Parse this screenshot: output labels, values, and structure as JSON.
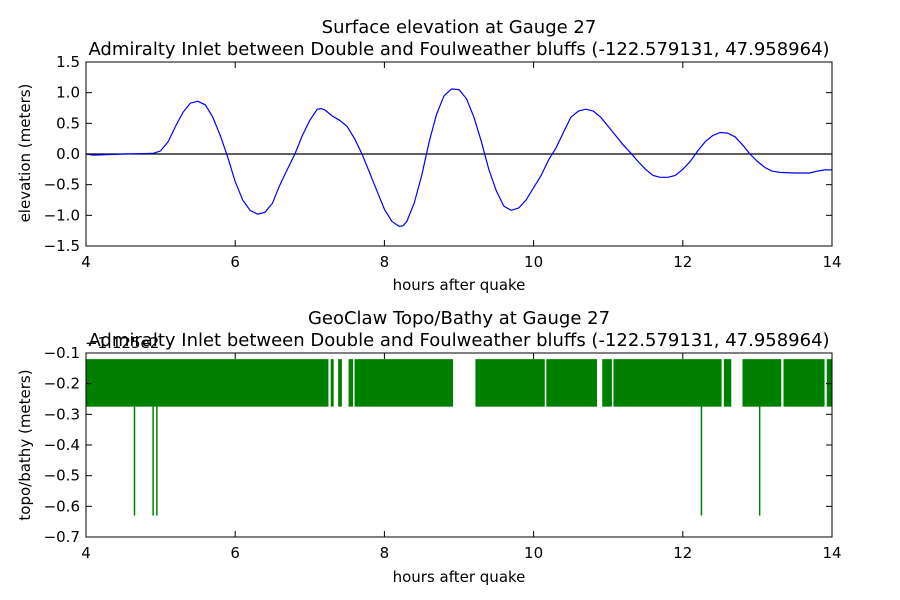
{
  "chart_data": [
    {
      "type": "line",
      "title": "Surface elevation at Gauge 27",
      "subtitle": "Admiralty Inlet between Double and Foulweather bluffs  (-122.579131, 47.958964)",
      "xlabel": "hours after quake",
      "ylabel": "elevation (meters)",
      "xlim": [
        4,
        14
      ],
      "ylim": [
        -1.5,
        1.5
      ],
      "xticks": [
        "4",
        "6",
        "8",
        "10",
        "12",
        "14"
      ],
      "yticks": [
        "1.5",
        "1.0",
        "0.5",
        "0.0",
        "−0.5",
        "−1.0",
        "−1.5"
      ],
      "grid": false,
      "reference_line": {
        "y": 0.0,
        "color": "#000000"
      },
      "series": [
        {
          "color": "#0000ff",
          "x": [
            4.0,
            4.1,
            4.5,
            4.9,
            5.0,
            5.1,
            5.2,
            5.3,
            5.4,
            5.5,
            5.6,
            5.7,
            5.8,
            5.9,
            6.0,
            6.1,
            6.2,
            6.3,
            6.4,
            6.5,
            6.6,
            6.7,
            6.8,
            6.9,
            7.0,
            7.1,
            7.15,
            7.2,
            7.3,
            7.4,
            7.5,
            7.6,
            7.7,
            7.8,
            7.9,
            8.0,
            8.1,
            8.2,
            8.25,
            8.3,
            8.4,
            8.5,
            8.6,
            8.7,
            8.8,
            8.9,
            9.0,
            9.1,
            9.2,
            9.3,
            9.4,
            9.5,
            9.6,
            9.7,
            9.8,
            9.9,
            10.0,
            10.1,
            10.2,
            10.3,
            10.4,
            10.5,
            10.6,
            10.7,
            10.8,
            10.9,
            11.0,
            11.1,
            11.2,
            11.3,
            11.4,
            11.5,
            11.6,
            11.7,
            11.8,
            11.9,
            12.0,
            12.1,
            12.2,
            12.3,
            12.4,
            12.5,
            12.6,
            12.7,
            12.8,
            12.9,
            13.0,
            13.1,
            13.2,
            13.3,
            13.5,
            13.7,
            13.8,
            13.9,
            14.0
          ],
          "y": [
            0.0,
            -0.02,
            0.0,
            0.01,
            0.05,
            0.2,
            0.45,
            0.68,
            0.83,
            0.86,
            0.8,
            0.6,
            0.3,
            -0.05,
            -0.45,
            -0.75,
            -0.92,
            -0.98,
            -0.95,
            -0.8,
            -0.5,
            -0.25,
            0.0,
            0.3,
            0.55,
            0.73,
            0.74,
            0.72,
            0.62,
            0.55,
            0.45,
            0.25,
            0.0,
            -0.3,
            -0.6,
            -0.9,
            -1.1,
            -1.18,
            -1.17,
            -1.1,
            -0.8,
            -0.35,
            0.2,
            0.65,
            0.95,
            1.06,
            1.05,
            0.9,
            0.6,
            0.2,
            -0.25,
            -0.6,
            -0.85,
            -0.92,
            -0.88,
            -0.75,
            -0.55,
            -0.35,
            -0.1,
            0.1,
            0.35,
            0.6,
            0.7,
            0.73,
            0.7,
            0.6,
            0.45,
            0.3,
            0.15,
            0.02,
            -0.12,
            -0.25,
            -0.35,
            -0.38,
            -0.38,
            -0.35,
            -0.25,
            -0.12,
            0.05,
            0.2,
            0.3,
            0.35,
            0.34,
            0.28,
            0.15,
            0.0,
            -0.12,
            -0.22,
            -0.28,
            -0.3,
            -0.31,
            -0.31,
            -0.28,
            -0.26,
            -0.26
          ]
        }
      ]
    },
    {
      "type": "line",
      "title": "GeoClaw Topo/Bathy at Gauge 27",
      "subtitle": "Admiralty Inlet between Double and Foulweather bluffs  (-122.579131, 47.958964)",
      "xlabel": "hours after quake",
      "ylabel": "topo/bathy (meters)",
      "offset_text": "−1.125e2",
      "xlim": [
        4,
        14
      ],
      "ylim": [
        -0.7,
        -0.1
      ],
      "xticks": [
        "4",
        "6",
        "8",
        "10",
        "12",
        "14"
      ],
      "yticks": [
        "−0.1",
        "−0.2",
        "−0.3",
        "−0.4",
        "−0.5",
        "−0.6",
        "−0.7"
      ],
      "grid": false,
      "series": [
        {
          "color": "#008000",
          "band_low": -0.275,
          "band_high": -0.12,
          "filled_intervals": [
            [
              4.0,
              7.25
            ],
            [
              7.28,
              7.32
            ],
            [
              7.38,
              7.43
            ],
            [
              7.52,
              7.58
            ],
            [
              7.6,
              8.92
            ],
            [
              9.22,
              10.15
            ],
            [
              10.17,
              10.85
            ],
            [
              10.92,
              11.05
            ],
            [
              11.07,
              12.52
            ],
            [
              12.55,
              12.65
            ],
            [
              12.8,
              13.32
            ],
            [
              13.35,
              13.9
            ],
            [
              13.93,
              14.0
            ]
          ],
          "spikes": [
            {
              "x": 4.65,
              "y": -0.63
            },
            {
              "x": 4.9,
              "y": -0.63
            },
            {
              "x": 4.95,
              "y": -0.63
            },
            {
              "x": 12.25,
              "y": -0.63
            },
            {
              "x": 13.03,
              "y": -0.63
            }
          ]
        }
      ]
    }
  ]
}
